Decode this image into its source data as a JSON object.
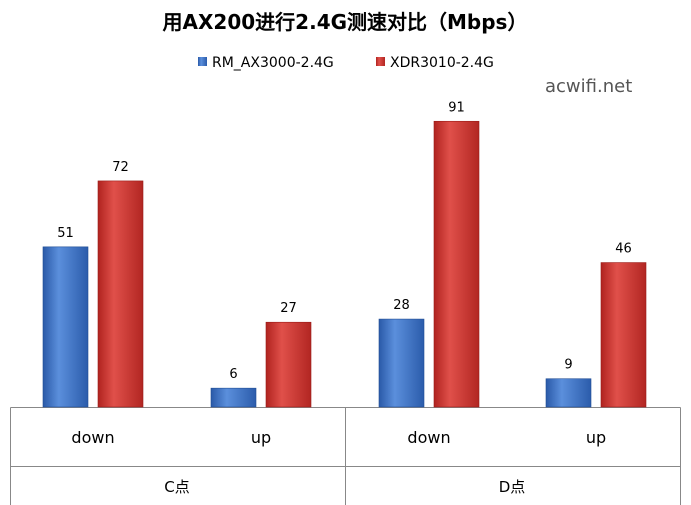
{
  "chart_data": {
    "type": "bar",
    "title": "用AX200进行2.4G测速对比（Mbps）",
    "groups": [
      {
        "label": "C点",
        "categories": [
          "down",
          "up"
        ]
      },
      {
        "label": "D点",
        "categories": [
          "down",
          "up"
        ]
      }
    ],
    "categories": [
      "down",
      "up",
      "down",
      "up"
    ],
    "series": [
      {
        "name": "RM_AX3000-2.4G",
        "values": [
          51,
          6,
          28,
          9
        ],
        "color": "#3a6fc4"
      },
      {
        "name": "XDR3010-2.4G",
        "values": [
          72,
          27,
          91,
          46
        ],
        "color": "#c9302c"
      }
    ],
    "ylim": [
      0,
      100
    ],
    "grid": false,
    "legend": "top-center"
  },
  "watermark": "acwifi.net"
}
